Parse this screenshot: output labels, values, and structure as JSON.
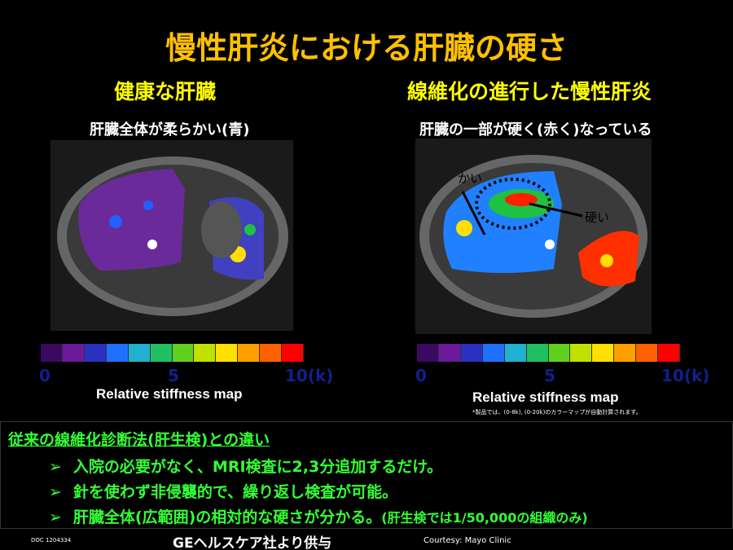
{
  "title": "慢性肝炎における肝臓の硬さ",
  "left": {
    "heading": "健康な肝臓",
    "caption": "肝臓全体が柔らかい(青)",
    "scale_labels": [
      "0",
      "5",
      "10(k)"
    ],
    "scale_title": "Relative stiffness map"
  },
  "right": {
    "heading": "線維化の進行した慢性肝炎",
    "caption": "肝臓の一部が硬く(赤く)なっている",
    "annotations": [
      "かい",
      "硬い"
    ],
    "scale_labels": [
      "0",
      "5",
      "10(k)"
    ],
    "scale_title": "Relative stiffness map",
    "footnote": "*製品では、(0-8k), (0-20k)のカラーマップが自動計算されます。"
  },
  "box": {
    "heading": "従来の線維化診断法(肝生検)との違い",
    "bullets": [
      "入院の必要がなく、MRI検査に2,3分追加するだけ。",
      "針を使わず非侵襲的で、繰り返し検査が可能。",
      "肝臓全体(広範囲)の相対的な硬さが分かる。"
    ],
    "note": "(肝生検では1/50,000の組織のみ)"
  },
  "footer": {
    "doc": "DOC 1204334",
    "credit": "GEヘルスケア社より供与",
    "courtesy": "Courtesy: Mayo Clinic"
  }
}
